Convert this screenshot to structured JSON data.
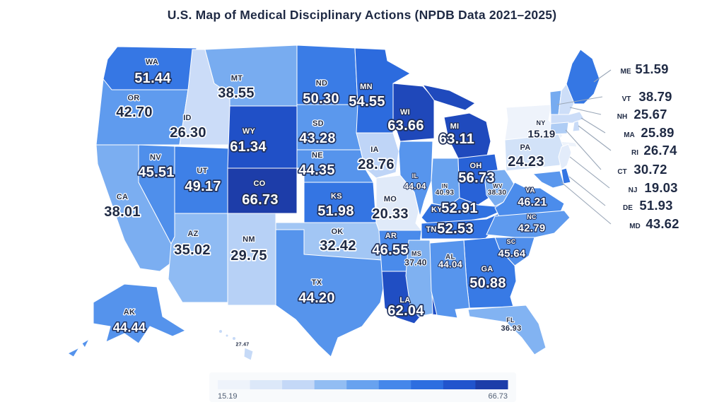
{
  "title": "U.S. Map of Medical Disciplinary Actions (NPDB Data 2021–2025)",
  "colors": {
    "background": "#ffffff",
    "text_dark": "#1f2a44",
    "text_light": "#ffffff",
    "legend_background": "#f8fafc",
    "legend_label": "#526075",
    "leader_line": "#9aa7b8"
  },
  "chart_data": {
    "type": "heatmap",
    "subtype": "us-choropleth",
    "title": "U.S. Map of Medical Disciplinary Actions (NPDB Data 2021–2025)",
    "value_range": [
      15.19,
      66.73
    ],
    "legend": {
      "min_label": "15.19",
      "max_label": "66.73",
      "position": "bottom-center",
      "bins": 9
    },
    "color_ramp": [
      "#eef3fb",
      "#dce8f9",
      "#c4d8f7",
      "#92bdf3",
      "#68a2ef",
      "#4587ea",
      "#2d6ee0",
      "#2154cd",
      "#1d3da9"
    ],
    "states": [
      {
        "abbr": "WA",
        "value": 51.44
      },
      {
        "abbr": "OR",
        "value": 42.7
      },
      {
        "abbr": "CA",
        "value": 38.01
      },
      {
        "abbr": "ID",
        "value": 26.3
      },
      {
        "abbr": "NV",
        "value": 45.51
      },
      {
        "abbr": "UT",
        "value": 49.17
      },
      {
        "abbr": "AZ",
        "value": 35.02
      },
      {
        "abbr": "MT",
        "value": 38.55
      },
      {
        "abbr": "WY",
        "value": 61.34
      },
      {
        "abbr": "CO",
        "value": 66.73
      },
      {
        "abbr": "NM",
        "value": 29.75
      },
      {
        "abbr": "ND",
        "value": 50.3
      },
      {
        "abbr": "SD",
        "value": 43.28
      },
      {
        "abbr": "NE",
        "value": 44.35
      },
      {
        "abbr": "KS",
        "value": 51.98
      },
      {
        "abbr": "OK",
        "value": 32.42
      },
      {
        "abbr": "TX",
        "value": 44.2
      },
      {
        "abbr": "MN",
        "value": 54.55
      },
      {
        "abbr": "IA",
        "value": 28.76
      },
      {
        "abbr": "MO",
        "value": 20.33
      },
      {
        "abbr": "AR",
        "value": 46.55
      },
      {
        "abbr": "LA",
        "value": 62.04
      },
      {
        "abbr": "WI",
        "value": 63.66
      },
      {
        "abbr": "IL",
        "value": 44.04
      },
      {
        "abbr": "MS",
        "value": 37.4
      },
      {
        "abbr": "MI",
        "value": 63.11
      },
      {
        "abbr": "IN",
        "value": 40.93
      },
      {
        "abbr": "OH",
        "value": 56.73
      },
      {
        "abbr": "KY",
        "value": 52.91
      },
      {
        "abbr": "TN",
        "value": 52.53
      },
      {
        "abbr": "WV",
        "value": 38.3
      },
      {
        "abbr": "VA",
        "value": 46.21
      },
      {
        "abbr": "NC",
        "value": 42.79
      },
      {
        "abbr": "SC",
        "value": 45.64
      },
      {
        "abbr": "GA",
        "value": 50.88
      },
      {
        "abbr": "AL",
        "value": 44.04
      },
      {
        "abbr": "FL",
        "value": 36.93
      },
      {
        "abbr": "AK",
        "value": 44.44
      },
      {
        "abbr": "HI",
        "value": 27.47
      },
      {
        "abbr": "NY",
        "value": 15.19
      },
      {
        "abbr": "PA",
        "value": 24.23
      },
      {
        "abbr": "ME",
        "value": 51.59
      },
      {
        "abbr": "VT",
        "value": 38.79
      },
      {
        "abbr": "NH",
        "value": 25.67
      },
      {
        "abbr": "MA",
        "value": 25.89
      },
      {
        "abbr": "RI",
        "value": 26.74
      },
      {
        "abbr": "CT",
        "value": 30.72
      },
      {
        "abbr": "NJ",
        "value": 19.03
      },
      {
        "abbr": "DE",
        "value": 51.93
      },
      {
        "abbr": "MD",
        "value": 43.62
      }
    ]
  }
}
